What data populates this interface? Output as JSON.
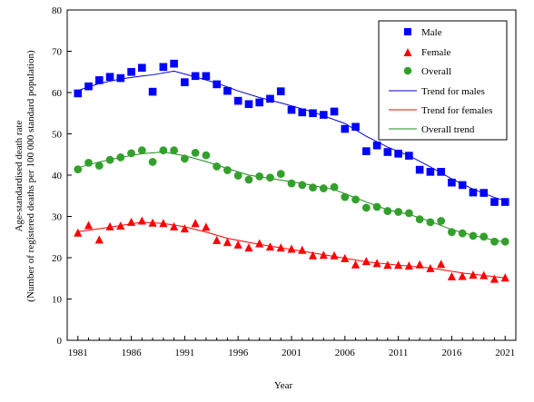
{
  "chart_data": {
    "type": "scatter",
    "title": "",
    "xlabel": "Year",
    "ylabel_line1": "Age-standardised death rate",
    "ylabel_line2": "(Number of registered deaths per 100 000 standard population)",
    "xlim": [
      1980,
      2022
    ],
    "ylim": [
      0,
      80
    ],
    "xticks": [
      1981,
      1986,
      1991,
      1996,
      2001,
      2006,
      2011,
      2016,
      2021
    ],
    "yticks": [
      0,
      10,
      20,
      30,
      40,
      50,
      60,
      70,
      80
    ],
    "grid": false,
    "legend_position": "top-right",
    "x": [
      1981,
      1982,
      1983,
      1984,
      1985,
      1986,
      1987,
      1988,
      1989,
      1990,
      1991,
      1992,
      1993,
      1994,
      1995,
      1996,
      1997,
      1998,
      1999,
      2000,
      2001,
      2002,
      2003,
      2004,
      2005,
      2006,
      2007,
      2008,
      2009,
      2010,
      2011,
      2012,
      2013,
      2014,
      2015,
      2016,
      2017,
      2018,
      2019,
      2020,
      2021
    ],
    "series": [
      {
        "name": "Male",
        "marker": "square",
        "color": "#0000ff",
        "values": [
          59.8,
          61.5,
          63.0,
          63.8,
          63.5,
          65.0,
          66.0,
          60.2,
          66.2,
          67.0,
          62.5,
          64.0,
          64.0,
          62.0,
          60.4,
          58.0,
          57.2,
          57.6,
          58.5,
          60.3,
          55.8,
          55.2,
          55.0,
          54.6,
          55.4,
          51.2,
          51.7,
          45.8,
          47.2,
          45.6,
          45.2,
          44.7,
          41.3,
          40.8,
          40.8,
          38.2,
          37.6,
          35.8,
          35.7,
          33.5,
          33.5
        ]
      },
      {
        "name": "Female",
        "marker": "triangle",
        "color": "#ff0000",
        "values": [
          26.0,
          27.8,
          24.3,
          27.5,
          27.7,
          28.6,
          28.9,
          28.4,
          28.3,
          27.5,
          27.0,
          28.3,
          27.4,
          24.2,
          23.7,
          23.1,
          22.4,
          23.4,
          22.6,
          22.4,
          22.1,
          21.8,
          20.5,
          20.6,
          20.5,
          19.8,
          18.3,
          19.1,
          18.6,
          18.2,
          18.2,
          18.0,
          18.3,
          17.4,
          18.4,
          15.4,
          15.5,
          15.8,
          15.7,
          14.8,
          15.1
        ]
      },
      {
        "name": "Overall",
        "marker": "circle",
        "color": "#33a02c",
        "values": [
          41.4,
          43.0,
          42.3,
          43.7,
          44.3,
          45.3,
          46.0,
          43.2,
          46.0,
          46.0,
          44.0,
          45.4,
          44.8,
          42.1,
          41.2,
          39.9,
          38.9,
          39.7,
          39.4,
          40.3,
          38.0,
          37.6,
          37.0,
          36.8,
          37.1,
          34.7,
          34.1,
          32.1,
          32.3,
          31.3,
          31.1,
          30.8,
          29.3,
          28.6,
          28.9,
          26.2,
          25.9,
          25.3,
          25.1,
          23.9,
          23.9
        ]
      }
    ],
    "trends": [
      {
        "name": "Trend for males",
        "color": "#0000cc",
        "x": [
          1981,
          1983,
          1985,
          1987,
          1988,
          1990,
          1992,
          1994,
          1996,
          1998,
          2000,
          2003,
          2006,
          2008,
          2010,
          2012,
          2014,
          2016,
          2018,
          2020,
          2021
        ],
        "values": [
          60.5,
          62.2,
          63.3,
          64.0,
          64.3,
          65.2,
          63.8,
          62.3,
          60.4,
          58.8,
          57.5,
          55.3,
          52.5,
          49.4,
          46.8,
          44.7,
          42.0,
          39.1,
          36.6,
          34.6,
          33.8
        ]
      },
      {
        "name": "Trend for females",
        "color": "#ff0000",
        "x": [
          1981,
          1983,
          1985,
          1987,
          1989,
          1991,
          1993,
          1995,
          1997,
          1999,
          2002,
          2005,
          2008,
          2011,
          2014,
          2017,
          2020,
          2021
        ],
        "values": [
          26.3,
          27.0,
          27.8,
          28.6,
          28.3,
          27.5,
          26.2,
          24.7,
          23.7,
          22.8,
          21.6,
          20.3,
          19.0,
          18.2,
          17.5,
          16.3,
          15.4,
          15.1
        ]
      },
      {
        "name": "Overall trend",
        "color": "#1f8a1f",
        "x": [
          1981,
          1983,
          1985,
          1987,
          1989,
          1991,
          1993,
          1995,
          1997,
          1999,
          2002,
          2005,
          2008,
          2010,
          2012,
          2014,
          2016,
          2018,
          2020,
          2021
        ],
        "values": [
          41.8,
          43.2,
          44.3,
          45.2,
          45.6,
          44.7,
          43.3,
          41.6,
          40.0,
          39.2,
          38.0,
          36.5,
          33.5,
          31.6,
          30.5,
          28.8,
          26.8,
          25.4,
          24.2,
          23.8
        ]
      }
    ]
  }
}
